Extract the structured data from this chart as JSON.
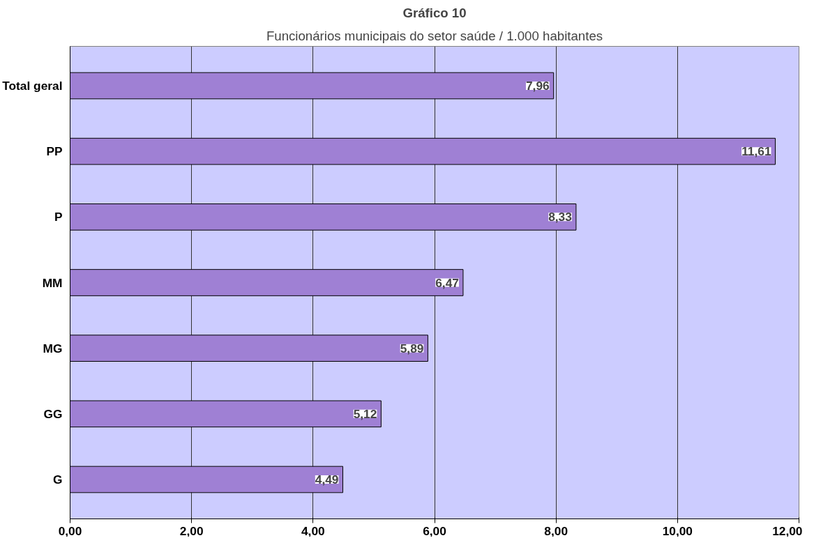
{
  "chart_data": {
    "type": "bar",
    "orientation": "horizontal",
    "title": "Gráfico 10",
    "subtitle": "Funcionários municipais do setor saúde / 1.000 habitantes",
    "categories": [
      "Total geral",
      "PP",
      "P",
      "MM",
      "MG",
      "GG",
      "G"
    ],
    "values": [
      7.96,
      11.61,
      8.33,
      6.47,
      5.89,
      5.12,
      4.49
    ],
    "value_labels": [
      "7,96",
      "11,61",
      "8,33",
      "6,47",
      "5,89",
      "5,12",
      "4,49"
    ],
    "color": "#9f80d4",
    "xlim": [
      0,
      12
    ],
    "xticks": [
      {
        "value": 0,
        "label": "0,00"
      },
      {
        "value": 2,
        "label": "2,00"
      },
      {
        "value": 4,
        "label": "4,00"
      },
      {
        "value": 6,
        "label": "6,00"
      },
      {
        "value": 8,
        "label": "8,00"
      },
      {
        "value": 10,
        "label": "10,00"
      },
      {
        "value": 12,
        "label": "12,00"
      }
    ],
    "grid": "x"
  }
}
